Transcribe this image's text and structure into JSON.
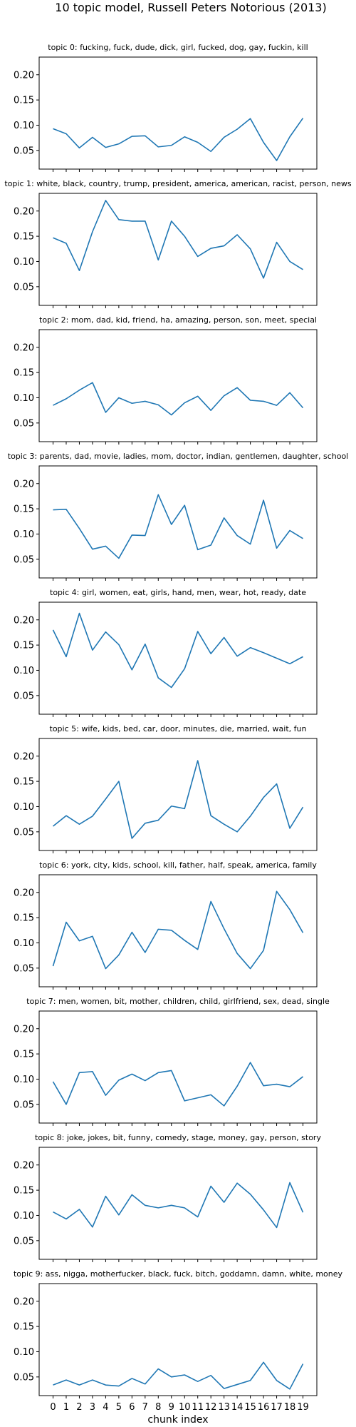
{
  "figure_title": "10 topic model, Russell Peters  Notorious (2013)",
  "chart_data": {
    "type": "line",
    "x": [
      0,
      1,
      2,
      3,
      4,
      5,
      6,
      7,
      8,
      9,
      10,
      11,
      12,
      13,
      14,
      15,
      16,
      17,
      18,
      19
    ],
    "xlabel": "chunk index",
    "ylim": [
      0.013,
      0.235
    ],
    "yticks": [
      0.05,
      0.1,
      0.15,
      0.2
    ],
    "ytick_labels": [
      "0.05",
      "0.10",
      "0.15",
      "0.20"
    ],
    "xtick_labels": [
      "0",
      "1",
      "2",
      "3",
      "4",
      "5",
      "6",
      "7",
      "8",
      "9",
      "10",
      "11",
      "12",
      "13",
      "14",
      "15",
      "16",
      "17",
      "18",
      "19"
    ],
    "color": "#1f77b4",
    "panels": [
      {
        "title": "topic 0: fucking, fuck, dude, dick, girl, fucked, dog, gay, fuckin, kill",
        "values": [
          0.093,
          0.083,
          0.055,
          0.076,
          0.056,
          0.063,
          0.078,
          0.079,
          0.057,
          0.06,
          0.077,
          0.066,
          0.048,
          0.076,
          0.092,
          0.113,
          0.066,
          0.03,
          0.077,
          0.114
        ]
      },
      {
        "title": "topic 1: white, black, country, trump, president, america, american, racist, person, news",
        "values": [
          0.147,
          0.136,
          0.082,
          0.159,
          0.221,
          0.183,
          0.18,
          0.18,
          0.103,
          0.18,
          0.15,
          0.11,
          0.126,
          0.131,
          0.153,
          0.125,
          0.067,
          0.138,
          0.1,
          0.084
        ]
      },
      {
        "title": "topic 2: mom, dad, kid, friend, ha, amazing, person, son, meet, special",
        "values": [
          0.085,
          0.098,
          0.115,
          0.13,
          0.071,
          0.1,
          0.089,
          0.093,
          0.086,
          0.066,
          0.09,
          0.103,
          0.075,
          0.104,
          0.12,
          0.095,
          0.093,
          0.085,
          0.11,
          0.08
        ]
      },
      {
        "title": "topic 3: parents, dad, movie, ladies, mom, doctor, indian, gentlemen, daughter, school",
        "values": [
          0.148,
          0.149,
          0.111,
          0.07,
          0.076,
          0.052,
          0.098,
          0.097,
          0.178,
          0.119,
          0.157,
          0.069,
          0.078,
          0.132,
          0.097,
          0.08,
          0.167,
          0.072,
          0.107,
          0.091
        ]
      },
      {
        "title": "topic 4: girl, women, eat, girls, hand, men, wear, hot, ready, date",
        "values": [
          0.18,
          0.127,
          0.213,
          0.14,
          0.176,
          0.151,
          0.101,
          0.152,
          0.085,
          0.066,
          0.103,
          0.177,
          0.133,
          0.165,
          0.128,
          0.145,
          0.135,
          0.124,
          0.113,
          0.127
        ]
      },
      {
        "title": "topic 5: wife, kids, bed, car, door, minutes, die, married, wait, fun",
        "values": [
          0.061,
          0.082,
          0.065,
          0.081,
          0.115,
          0.15,
          0.037,
          0.067,
          0.073,
          0.101,
          0.096,
          0.191,
          0.082,
          0.065,
          0.05,
          0.081,
          0.118,
          0.145,
          0.057,
          0.099
        ]
      },
      {
        "title": "topic 6: york, city, kids, school, kill, father, half, speak, america, family",
        "values": [
          0.054,
          0.141,
          0.104,
          0.113,
          0.049,
          0.076,
          0.121,
          0.081,
          0.127,
          0.125,
          0.105,
          0.087,
          0.182,
          0.128,
          0.079,
          0.049,
          0.085,
          0.202,
          0.166,
          0.12
        ]
      },
      {
        "title": "topic 7: men, women, bit, mother, children, child, girlfriend, sex, dead, single",
        "values": [
          0.095,
          0.05,
          0.113,
          0.115,
          0.068,
          0.098,
          0.11,
          0.097,
          0.113,
          0.117,
          0.057,
          0.063,
          0.069,
          0.047,
          0.086,
          0.133,
          0.087,
          0.09,
          0.085,
          0.105
        ]
      },
      {
        "title": "topic 8: joke, jokes, bit, funny, comedy, stage, money, gay, person, story",
        "values": [
          0.107,
          0.093,
          0.112,
          0.077,
          0.138,
          0.101,
          0.141,
          0.12,
          0.115,
          0.12,
          0.115,
          0.097,
          0.158,
          0.126,
          0.164,
          0.142,
          0.111,
          0.076,
          0.165,
          0.106
        ]
      },
      {
        "title": "topic 9: ass, nigga, motherfucker, black, fuck, bitch, goddamn, damn, white, money",
        "values": [
          0.034,
          0.044,
          0.034,
          0.044,
          0.034,
          0.032,
          0.047,
          0.036,
          0.066,
          0.05,
          0.054,
          0.041,
          0.053,
          0.027,
          0.035,
          0.043,
          0.079,
          0.043,
          0.026,
          0.076
        ]
      }
    ]
  }
}
